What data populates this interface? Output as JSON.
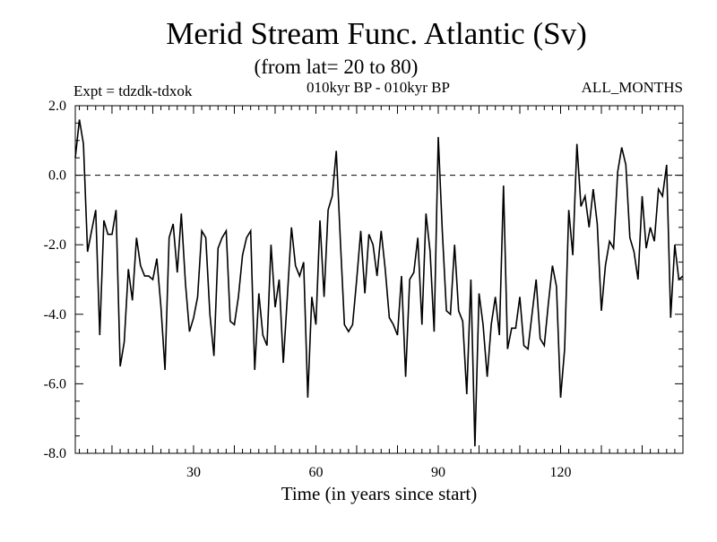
{
  "chart_data": {
    "type": "line",
    "title": "Merid Stream Func. Atlantic (Sv)",
    "subtitle": "(from lat= 20 to 80)",
    "experiment_label": "Expt = tdzdk-tdxok",
    "period_label": "010kyr BP - 010kyr BP",
    "months_label": "ALL_MONTHS",
    "xlabel": "Time (in years since start)",
    "ylabel": "",
    "xlim": [
      1,
      150
    ],
    "ylim": [
      -8.0,
      2.0
    ],
    "x_tick_labels": [
      {
        "value": 30,
        "label": "30"
      },
      {
        "value": 60,
        "label": "60"
      },
      {
        "value": 90,
        "label": "90"
      },
      {
        "value": 120,
        "label": "120"
      }
    ],
    "y_tick_labels": [
      {
        "value": 2.0,
        "label": "2.0"
      },
      {
        "value": 0.0,
        "label": "0.0"
      },
      {
        "value": -2.0,
        "label": "-2.0"
      },
      {
        "value": -4.0,
        "label": "-4.0"
      },
      {
        "value": -6.0,
        "label": "-6.0"
      },
      {
        "value": -8.0,
        "label": "-8.0"
      }
    ],
    "reference_line": {
      "y": 0.0,
      "style": "dashed"
    },
    "series": [
      {
        "name": "Merid Stream Func.",
        "values": [
          0.5,
          1.6,
          0.9,
          -2.2,
          -1.6,
          -1.0,
          -4.6,
          -1.3,
          -1.7,
          -1.7,
          -1.0,
          -5.5,
          -4.8,
          -2.7,
          -3.6,
          -1.8,
          -2.6,
          -2.9,
          -2.9,
          -3.0,
          -2.4,
          -3.8,
          -5.6,
          -1.8,
          -1.4,
          -2.8,
          -1.1,
          -3.1,
          -4.5,
          -4.1,
          -3.5,
          -1.6,
          -1.8,
          -4.0,
          -5.2,
          -2.1,
          -1.8,
          -1.6,
          -4.2,
          -4.3,
          -3.5,
          -2.3,
          -1.8,
          -1.6,
          -5.6,
          -3.4,
          -4.6,
          -4.9,
          -2.0,
          -3.8,
          -3.0,
          -5.4,
          -3.5,
          -1.5,
          -2.6,
          -2.9,
          -2.5,
          -6.4,
          -3.5,
          -4.3,
          -1.3,
          -3.5,
          -1.0,
          -0.6,
          0.7,
          -1.9,
          -4.3,
          -4.5,
          -4.3,
          -3.0,
          -1.6,
          -3.4,
          -1.7,
          -2.0,
          -2.9,
          -1.6,
          -2.7,
          -4.1,
          -4.3,
          -4.6,
          -2.9,
          -5.8,
          -3.0,
          -2.8,
          -1.8,
          -4.3,
          -1.1,
          -2.2,
          -4.5,
          1.1,
          -1.6,
          -3.9,
          -4.0,
          -2.0,
          -3.9,
          -4.2,
          -6.3,
          -3.0,
          -7.8,
          -3.4,
          -4.3,
          -5.8,
          -4.3,
          -3.5,
          -4.6,
          -0.3,
          -5.0,
          -4.4,
          -4.4,
          -3.5,
          -4.9,
          -5.0,
          -4.0,
          -3.0,
          -4.7,
          -4.9,
          -3.7,
          -2.6,
          -3.2,
          -6.4,
          -5.0,
          -1.0,
          -2.3,
          0.9,
          -0.9,
          -0.6,
          -1.5,
          -0.4,
          -1.4,
          -3.9,
          -2.6,
          -1.9,
          -2.1,
          0.1,
          0.8,
          0.3,
          -1.8,
          -2.2,
          -3.0,
          -0.6,
          -2.1,
          -1.5,
          -1.9,
          -0.4,
          -0.6,
          0.3,
          -4.1,
          -2.0,
          -3.0,
          -2.9
        ]
      }
    ]
  }
}
